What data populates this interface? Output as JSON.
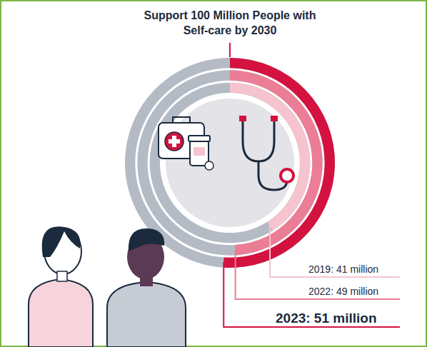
{
  "chart_data": {
    "type": "radial_bar",
    "title": "Support 100 Million People with Self-care by 2030",
    "categories": [
      "2019",
      "2022",
      "2023"
    ],
    "values": [
      41,
      49,
      51
    ],
    "value_labels": [
      "2019: 41 million",
      "2022: 49 million",
      "2023: 51 million"
    ],
    "colors": [
      "#f5c4cf",
      "#ec7d96",
      "#d3123f"
    ],
    "ylim": [
      0,
      100
    ],
    "data_labels": true,
    "tick_labels": false
  }
}
